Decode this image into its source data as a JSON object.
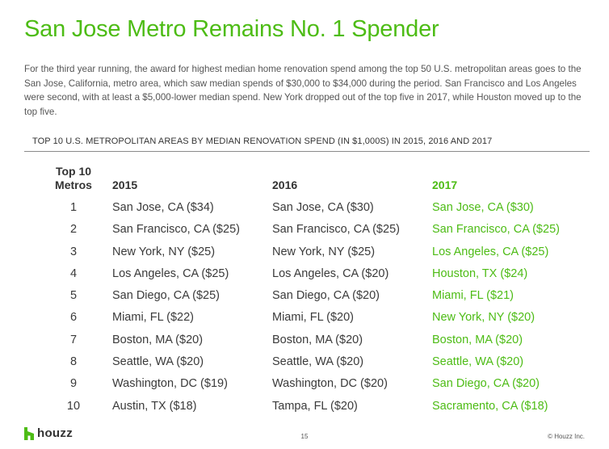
{
  "title": "San Jose Metro Remains No. 1 Spender",
  "intro": "For the third year running, the award for highest median home renovation spend among the top 50 U.S. metropolitan areas goes to the San Jose, California, metro area, which saw median spends of $30,000 to $34,000 during the period. San Francisco and Los Angeles were second, with at least a $5,000-lower median spend. New York dropped out of the top five in 2017, while Houston moved up to the top five.",
  "section_heading": "TOP 10 U.S. METROPOLITAN AREAS BY MEDIAN RENOVATION SPEND (IN $1,000S) IN 2015, 2016 AND 2017",
  "table": {
    "header_top": "Top 10",
    "header_rank": "Metros",
    "header_2015": "2015",
    "header_2016": "2016",
    "header_2017": "2017",
    "rows": [
      {
        "rank": "1",
        "y2015": "San Jose, CA ($34)",
        "y2016": "San Jose, CA ($30)",
        "y2017": "San Jose, CA ($30)"
      },
      {
        "rank": "2",
        "y2015": "San Francisco, CA ($25)",
        "y2016": "San Francisco, CA ($25)",
        "y2017": "San Francisco, CA ($25)"
      },
      {
        "rank": "3",
        "y2015": "New York, NY ($25)",
        "y2016": "New York, NY ($25)",
        "y2017": "Los Angeles, CA ($25)"
      },
      {
        "rank": "4",
        "y2015": "Los Angeles, CA ($25)",
        "y2016": "Los Angeles, CA ($20)",
        "y2017": "Houston, TX ($24)"
      },
      {
        "rank": "5",
        "y2015": "San Diego, CA ($25)",
        "y2016": "San Diego, CA ($20)",
        "y2017": "Miami, FL ($21)"
      },
      {
        "rank": "6",
        "y2015": "Miami, FL ($22)",
        "y2016": "Miami, FL ($20)",
        "y2017": "New York, NY ($20)"
      },
      {
        "rank": "7",
        "y2015": "Boston, MA ($20)",
        "y2016": "Boston, MA ($20)",
        "y2017": "Boston, MA ($20)"
      },
      {
        "rank": "8",
        "y2015": "Seattle, WA ($20)",
        "y2016": "Seattle, WA ($20)",
        "y2017": "Seattle, WA ($20)"
      },
      {
        "rank": "9",
        "y2015": "Washington, DC ($19)",
        "y2016": "Washington, DC ($20)",
        "y2017": "San Diego, CA ($20)"
      },
      {
        "rank": "10",
        "y2015": "Austin, TX ($18)",
        "y2016": "Tampa, FL ($20)",
        "y2017": "Sacramento, CA ($18)"
      }
    ]
  },
  "footer": {
    "logo_text": "houzz",
    "logo_icon": "houzz-logo-icon",
    "page_number": "15",
    "copyright": "© Houzz Inc."
  },
  "colors": {
    "accent": "#4dbc15",
    "text": "#3a3a3a"
  }
}
